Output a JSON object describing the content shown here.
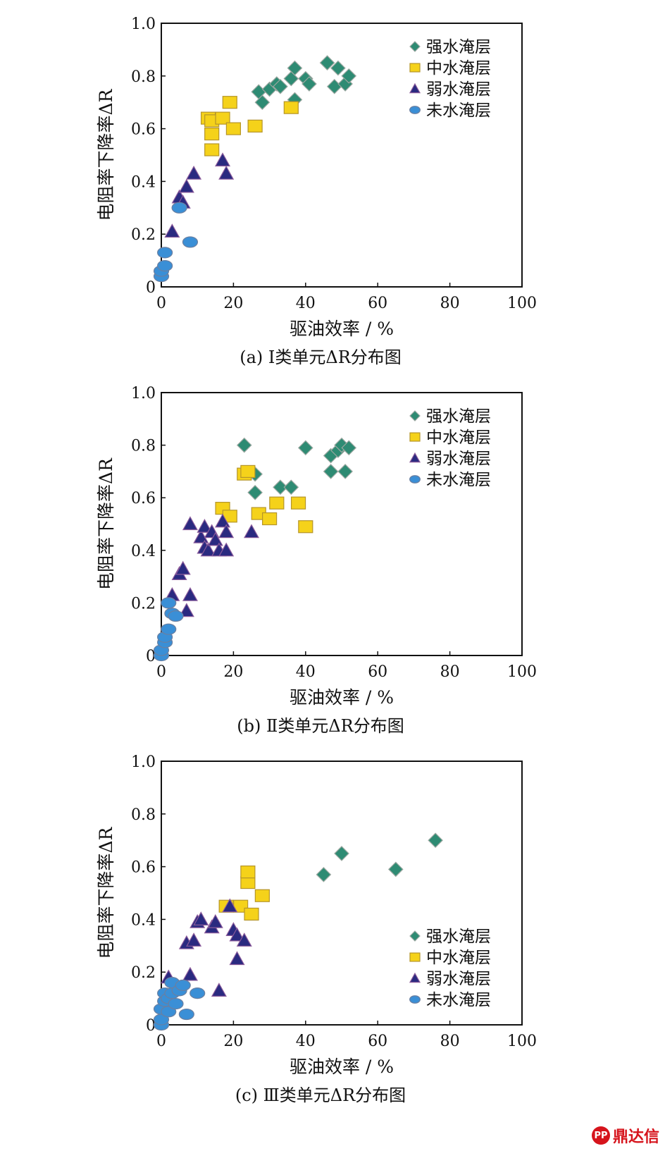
{
  "watermark": "鼎达信",
  "legend_colors": {
    "strong": "#2e8b73",
    "medium": "#f5d21a",
    "weak": "#2a2a80",
    "none": "#3a8fd6"
  },
  "chart_data": [
    {
      "type": "scatter",
      "caption": "(a) Ⅰ类单元ΔR分布图",
      "xlabel": "驱油效率 / %",
      "ylabel": "电阻率下降率ΔR",
      "xlim": [
        0,
        100
      ],
      "ylim": [
        0,
        1.0
      ],
      "xticks": [
        "0",
        "20",
        "40",
        "60",
        "80",
        "100"
      ],
      "yticks": [
        "0",
        "0.2",
        "0.4",
        "0.6",
        "0.8",
        "1.0"
      ],
      "legend_position": "top-right",
      "series": [
        {
          "name": "强水淹层",
          "marker": "diamond",
          "points": [
            [
              27,
              0.74
            ],
            [
              28,
              0.7
            ],
            [
              30,
              0.75
            ],
            [
              32,
              0.77
            ],
            [
              33,
              0.76
            ],
            [
              36,
              0.79
            ],
            [
              37,
              0.83
            ],
            [
              37,
              0.71
            ],
            [
              40,
              0.79
            ],
            [
              41,
              0.77
            ],
            [
              46,
              0.85
            ],
            [
              48,
              0.76
            ],
            [
              49,
              0.83
            ],
            [
              51,
              0.77
            ],
            [
              52,
              0.8
            ]
          ]
        },
        {
          "name": "中水淹层",
          "marker": "square",
          "points": [
            [
              13,
              0.64
            ],
            [
              14,
              0.63
            ],
            [
              14,
              0.58
            ],
            [
              14,
              0.52
            ],
            [
              17,
              0.64
            ],
            [
              19,
              0.7
            ],
            [
              20,
              0.6
            ],
            [
              26,
              0.61
            ],
            [
              36,
              0.68
            ]
          ]
        },
        {
          "name": "弱水淹层",
          "marker": "triangle",
          "points": [
            [
              3,
              0.21
            ],
            [
              5,
              0.34
            ],
            [
              6,
              0.32
            ],
            [
              7,
              0.38
            ],
            [
              9,
              0.43
            ],
            [
              17,
              0.48
            ],
            [
              18,
              0.43
            ]
          ]
        },
        {
          "name": "未水淹层",
          "marker": "circle",
          "points": [
            [
              0,
              0.04
            ],
            [
              0,
              0.06
            ],
            [
              1,
              0.08
            ],
            [
              1,
              0.13
            ],
            [
              5,
              0.3
            ],
            [
              8,
              0.17
            ]
          ]
        }
      ]
    },
    {
      "type": "scatter",
      "caption": "(b) Ⅱ类单元ΔR分布图",
      "xlabel": "驱油效率 / %",
      "ylabel": "电阻率下降率ΔR",
      "xlim": [
        0,
        100
      ],
      "ylim": [
        0,
        1.0
      ],
      "xticks": [
        "0",
        "20",
        "40",
        "60",
        "80",
        "100"
      ],
      "yticks": [
        "0",
        "0.2",
        "0.4",
        "0.6",
        "0.8",
        "1.0"
      ],
      "legend_position": "top-right",
      "series": [
        {
          "name": "强水淹层",
          "marker": "diamond",
          "points": [
            [
              23,
              0.8
            ],
            [
              26,
              0.69
            ],
            [
              26,
              0.62
            ],
            [
              33,
              0.64
            ],
            [
              36,
              0.64
            ],
            [
              40,
              0.79
            ],
            [
              47,
              0.7
            ],
            [
              47,
              0.76
            ],
            [
              49,
              0.78
            ],
            [
              50,
              0.8
            ],
            [
              51,
              0.7
            ],
            [
              52,
              0.79
            ]
          ]
        },
        {
          "name": "中水淹层",
          "marker": "square",
          "points": [
            [
              17,
              0.56
            ],
            [
              19,
              0.53
            ],
            [
              23,
              0.69
            ],
            [
              24,
              0.7
            ],
            [
              27,
              0.54
            ],
            [
              30,
              0.52
            ],
            [
              32,
              0.58
            ],
            [
              38,
              0.58
            ],
            [
              40,
              0.49
            ]
          ]
        },
        {
          "name": "弱水淹层",
          "marker": "triangle",
          "points": [
            [
              3,
              0.23
            ],
            [
              5,
              0.31
            ],
            [
              6,
              0.33
            ],
            [
              7,
              0.17
            ],
            [
              8,
              0.23
            ],
            [
              8,
              0.5
            ],
            [
              11,
              0.45
            ],
            [
              12,
              0.49
            ],
            [
              12,
              0.41
            ],
            [
              13,
              0.4
            ],
            [
              14,
              0.47
            ],
            [
              15,
              0.44
            ],
            [
              16,
              0.4
            ],
            [
              17,
              0.51
            ],
            [
              18,
              0.47
            ],
            [
              18,
              0.4
            ],
            [
              25,
              0.47
            ]
          ]
        },
        {
          "name": "未水淹层",
          "marker": "circle",
          "points": [
            [
              0,
              0.0
            ],
            [
              0,
              0.02
            ],
            [
              1,
              0.05
            ],
            [
              1,
              0.07
            ],
            [
              2,
              0.1
            ],
            [
              2,
              0.2
            ],
            [
              3,
              0.16
            ],
            [
              4,
              0.15
            ]
          ]
        }
      ]
    },
    {
      "type": "scatter",
      "caption": "(c) Ⅲ类单元ΔR分布图",
      "xlabel": "驱油效率 / %",
      "ylabel": "电阻率下降率ΔR",
      "xlim": [
        0,
        100
      ],
      "ylim": [
        0,
        1.0
      ],
      "xticks": [
        "0",
        "20",
        "40",
        "60",
        "80",
        "100"
      ],
      "yticks": [
        "0",
        "0.2",
        "0.4",
        "0.6",
        "0.8",
        "1.0"
      ],
      "legend_position": "bottom-right",
      "series": [
        {
          "name": "强水淹层",
          "marker": "diamond",
          "points": [
            [
              45,
              0.57
            ],
            [
              50,
              0.65
            ],
            [
              65,
              0.59
            ],
            [
              76,
              0.7
            ]
          ]
        },
        {
          "name": "中水淹层",
          "marker": "square",
          "points": [
            [
              18,
              0.45
            ],
            [
              22,
              0.45
            ],
            [
              24,
              0.54
            ],
            [
              24,
              0.58
            ],
            [
              25,
              0.42
            ],
            [
              28,
              0.49
            ]
          ]
        },
        {
          "name": "弱水淹层",
          "marker": "triangle",
          "points": [
            [
              2,
              0.18
            ],
            [
              7,
              0.31
            ],
            [
              8,
              0.19
            ],
            [
              9,
              0.32
            ],
            [
              10,
              0.39
            ],
            [
              11,
              0.4
            ],
            [
              14,
              0.37
            ],
            [
              15,
              0.39
            ],
            [
              16,
              0.13
            ],
            [
              19,
              0.45
            ],
            [
              20,
              0.36
            ],
            [
              21,
              0.34
            ],
            [
              21,
              0.25
            ],
            [
              23,
              0.32
            ]
          ]
        },
        {
          "name": "未水淹层",
          "marker": "circle",
          "points": [
            [
              0,
              0.0
            ],
            [
              0,
              0.02
            ],
            [
              0,
              0.06
            ],
            [
              1,
              0.09
            ],
            [
              1,
              0.12
            ],
            [
              2,
              0.05
            ],
            [
              2,
              0.1
            ],
            [
              3,
              0.12
            ],
            [
              3,
              0.16
            ],
            [
              4,
              0.08
            ],
            [
              5,
              0.13
            ],
            [
              6,
              0.15
            ],
            [
              7,
              0.04
            ],
            [
              10,
              0.12
            ]
          ]
        }
      ]
    }
  ]
}
